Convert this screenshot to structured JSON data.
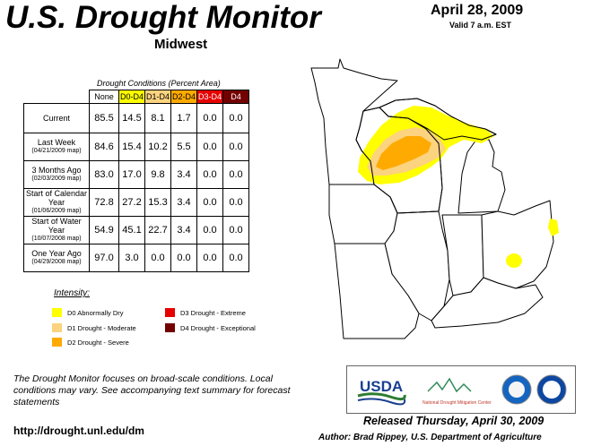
{
  "header": {
    "title": "U.S. Drought Monitor",
    "region": "Midwest",
    "date": "April 28, 2009",
    "valid": "Valid 7 a.m. EST"
  },
  "table": {
    "caption": "Drought Conditions (Percent Area)",
    "columns": [
      {
        "label": "None",
        "color": "#ffffff"
      },
      {
        "label": "D0-D4",
        "color": "#ffff00"
      },
      {
        "label": "D1-D4",
        "color": "#fcd37f"
      },
      {
        "label": "D2-D4",
        "color": "#ffaa00"
      },
      {
        "label": "D3-D4",
        "color": "#e60000"
      },
      {
        "label": "D4",
        "color": "#730000"
      }
    ],
    "rows": [
      {
        "label": "Current",
        "sub": "",
        "values": [
          "85.5",
          "14.5",
          "8.1",
          "1.7",
          "0.0",
          "0.0"
        ]
      },
      {
        "label": "Last Week",
        "sub": "(04/21/2009 map)",
        "values": [
          "84.6",
          "15.4",
          "10.2",
          "5.5",
          "0.0",
          "0.0"
        ]
      },
      {
        "label": "3 Months Ago",
        "sub": "(02/03/2009 map)",
        "values": [
          "83.0",
          "17.0",
          "9.8",
          "3.4",
          "0.0",
          "0.0"
        ]
      },
      {
        "label": "Start of Calendar Year",
        "sub": "(01/06/2009 map)",
        "values": [
          "72.8",
          "27.2",
          "15.3",
          "3.4",
          "0.0",
          "0.0"
        ]
      },
      {
        "label": "Start of Water Year",
        "sub": "(10/07/2008 map)",
        "values": [
          "54.9",
          "45.1",
          "22.7",
          "3.4",
          "0.0",
          "0.0"
        ]
      },
      {
        "label": "One Year Ago",
        "sub": "(04/29/2008 map)",
        "values": [
          "97.0",
          "3.0",
          "0.0",
          "0.0",
          "0.0",
          "0.0"
        ]
      }
    ]
  },
  "legend": {
    "title": "Intensity:",
    "items": [
      {
        "label": "D0 Abnormally Dry",
        "color": "#ffff00"
      },
      {
        "label": "D1 Drought - Moderate",
        "color": "#fcd37f"
      },
      {
        "label": "D2 Drought - Severe",
        "color": "#ffaa00"
      },
      {
        "label": "D3 Drought - Extreme",
        "color": "#e60000"
      },
      {
        "label": "D4 Drought - Exceptional",
        "color": "#730000"
      }
    ]
  },
  "note": "The Drought Monitor focuses on broad-scale conditions. Local conditions may vary. See accompanying text summary for forecast statements",
  "url": "http://drought.unl.edu/dm",
  "released": "Released Thursday, April 30, 2009",
  "author": "Author: Brad Rippey, U.S. Department of Agriculture",
  "logos": {
    "usda": "USDA",
    "ndmc": "National Drought Mitigation Center"
  }
}
